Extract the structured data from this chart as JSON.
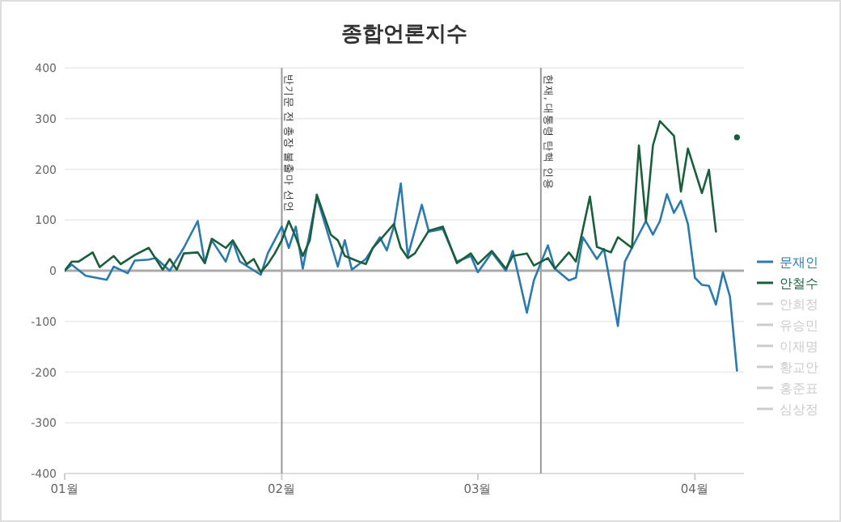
{
  "chart_data": {
    "type": "line",
    "title": "종합언론지수",
    "ylim": [
      -400,
      400
    ],
    "yticks": [
      -400,
      -300,
      -200,
      -100,
      0,
      100,
      200,
      300,
      400
    ],
    "xlim": [
      "--01-01",
      "--04-08"
    ],
    "xticks": [
      {
        "value": "--01-01",
        "label": "01월"
      },
      {
        "value": "--02-01",
        "label": "02월"
      },
      {
        "value": "--03-01",
        "label": "03월"
      },
      {
        "value": "--04-01",
        "label": "04월"
      }
    ],
    "grid": "y",
    "legend": "right",
    "marker": "none",
    "line_style": "solid",
    "ref_lines": [
      {
        "axis": "x",
        "value": "--02-01",
        "label": "반기문 전 총장 불출마 선언",
        "color": "#999999"
      },
      {
        "axis": "x",
        "value": "--03-10",
        "label": "헌재, 대통령 탄핵 인용",
        "color": "#999999"
      },
      {
        "axis": "y",
        "value": 0,
        "label": null,
        "color": "#aaaaaa"
      }
    ],
    "series": [
      {
        "name": "문재인",
        "color": "#2a7ab0",
        "x": [
          "--01-01",
          "--01-02",
          "--01-04",
          "--01-07",
          "--01-08",
          "--01-10",
          "--01-11",
          "--01-13",
          "--01-14",
          "--01-16",
          "--01-18",
          "--01-20",
          "--01-21",
          "--01-22",
          "--01-24",
          "--01-25",
          "--01-26",
          "--01-29",
          "--01-30",
          "--02-01",
          "--02-02",
          "--02-03",
          "--02-04",
          "--02-06",
          "--02-09",
          "--02-10",
          "--02-11",
          "--02-13",
          "--02-15",
          "--02-16",
          "--02-17",
          "--02-18",
          "--02-19",
          "--02-21",
          "--02-22",
          "--02-24",
          "--02-26",
          "--02-28",
          "--03-01",
          "--03-03",
          "--03-05",
          "--03-06",
          "--03-08",
          "--03-09",
          "--03-11",
          "--03-12",
          "--03-14",
          "--03-15",
          "--03-16",
          "--03-18",
          "--03-19",
          "--03-21",
          "--03-22",
          "--03-23",
          "--03-25",
          "--03-26",
          "--03-27",
          "--03-28",
          "--03-29",
          "--03-30",
          "--03-31",
          "--04-01",
          "--04-02",
          "--04-03",
          "--04-04",
          "--04-05",
          "--04-06",
          "--04-07"
        ],
        "values": [
          0,
          12,
          -10,
          -18,
          8,
          -5,
          20,
          22,
          25,
          0,
          45,
          98,
          15,
          60,
          18,
          58,
          18,
          -8,
          34,
          87,
          45,
          87,
          4,
          146,
          8,
          60,
          2,
          23,
          66,
          40,
          87,
          172,
          29,
          130,
          77,
          82,
          18,
          29,
          -3,
          36,
          0,
          39,
          -83,
          -19,
          50,
          4,
          -19,
          -14,
          66,
          23,
          43,
          -109,
          18,
          45,
          98,
          71,
          98,
          151,
          114,
          138,
          92,
          -14,
          -28,
          -30,
          -67,
          -3,
          -51,
          -197
        ]
      },
      {
        "name": "안철수",
        "color": "#1b5e3b",
        "x": [
          "--01-01",
          "--01-02",
          "--01-03",
          "--01-05",
          "--01-06",
          "--01-08",
          "--01-09",
          "--01-11",
          "--01-13",
          "--01-15",
          "--01-16",
          "--01-17",
          "--01-18",
          "--01-20",
          "--01-21",
          "--01-22",
          "--01-24",
          "--01-25",
          "--01-27",
          "--01-28",
          "--01-29",
          "--01-30",
          "--01-31",
          "--02-01",
          "--02-02",
          "--02-03",
          "--02-04",
          "--02-05",
          "--02-06",
          "--02-08",
          "--02-09",
          "--02-10",
          "--02-12",
          "--02-13",
          "--02-14",
          "--02-15",
          "--02-17",
          "--02-18",
          "--02-19",
          "--02-20",
          "--02-22",
          "--02-24",
          "--02-26",
          "--02-28",
          "--03-01",
          "--03-03",
          "--03-05",
          "--03-06",
          "--03-08",
          "--03-09",
          "--03-11",
          "--03-12",
          "--03-14",
          "--03-15",
          "--03-17",
          "--03-18",
          "--03-20",
          "--03-21",
          "--03-23",
          "--03-24",
          "--03-25",
          "--03-26",
          "--03-27",
          "--03-29",
          "--03-30",
          "--03-31",
          "--04-02",
          "--04-03",
          "--04-04",
          "--04-05",
          "--04-06",
          "--04-07"
        ],
        "values": [
          0,
          18,
          18,
          36,
          7,
          29,
          13,
          31,
          45,
          2,
          23,
          2,
          34,
          36,
          15,
          63,
          45,
          60,
          13,
          23,
          -3,
          13,
          34,
          60,
          98,
          66,
          29,
          60,
          150,
          71,
          60,
          29,
          18,
          13,
          45,
          60,
          92,
          45,
          25,
          34,
          79,
          87,
          15,
          34,
          13,
          39,
          4,
          29,
          34,
          10,
          25,
          4,
          36,
          18,
          146,
          47,
          36,
          66,
          45,
          247,
          98,
          247,
          295,
          266,
          156,
          241,
          153,
          199,
          77,
          null,
          null,
          263
        ]
      },
      {
        "name": "안희정",
        "color": "#cccccc"
      },
      {
        "name": "유승민",
        "color": "#cccccc"
      },
      {
        "name": "이재명",
        "color": "#cccccc"
      },
      {
        "name": "황교안",
        "color": "#cccccc"
      },
      {
        "name": "홍준표",
        "color": "#cccccc"
      },
      {
        "name": "심상정",
        "color": "#cccccc"
      }
    ]
  }
}
